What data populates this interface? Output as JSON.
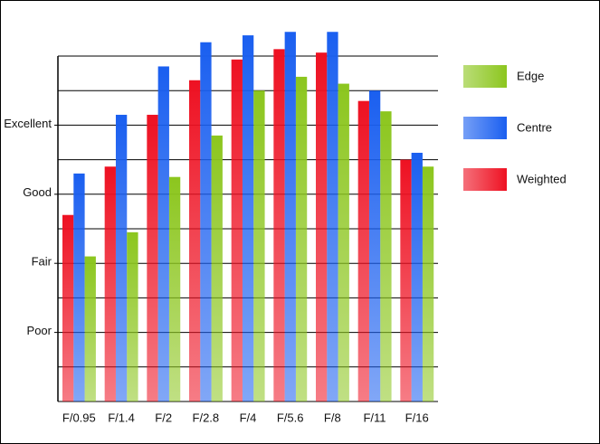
{
  "chart_data": {
    "type": "bar",
    "categories": [
      "F/0.95",
      "F/1.4",
      "F/2",
      "F/2.8",
      "F/4",
      "F/5.6",
      "F/8",
      "F/11",
      "F/16"
    ],
    "series": [
      {
        "name": "Weighted",
        "color": "#ee1122",
        "values": [
          5.4,
          6.8,
          8.3,
          9.3,
          9.9,
          10.2,
          10.1,
          8.7,
          7.0
        ]
      },
      {
        "name": "Centre",
        "color": "#1a5ff0",
        "values": [
          6.6,
          8.3,
          9.7,
          10.4,
          10.6,
          10.7,
          10.7,
          9.0,
          7.2
        ]
      },
      {
        "name": "Edge",
        "color": "#8cc61e",
        "values": [
          4.2,
          4.9,
          6.5,
          7.7,
          9.0,
          9.4,
          9.2,
          8.4,
          6.8
        ]
      }
    ],
    "ylim": [
      0,
      10
    ],
    "yticks": [
      {
        "value": 2,
        "label": "Poor"
      },
      {
        "value": 4,
        "label": "Fair"
      },
      {
        "value": 6,
        "label": "Good"
      },
      {
        "value": 8,
        "label": "Excellent"
      }
    ],
    "ygrid": [
      0,
      1,
      2,
      3,
      4,
      5,
      6,
      7,
      8,
      9,
      10
    ],
    "legend": "right"
  }
}
